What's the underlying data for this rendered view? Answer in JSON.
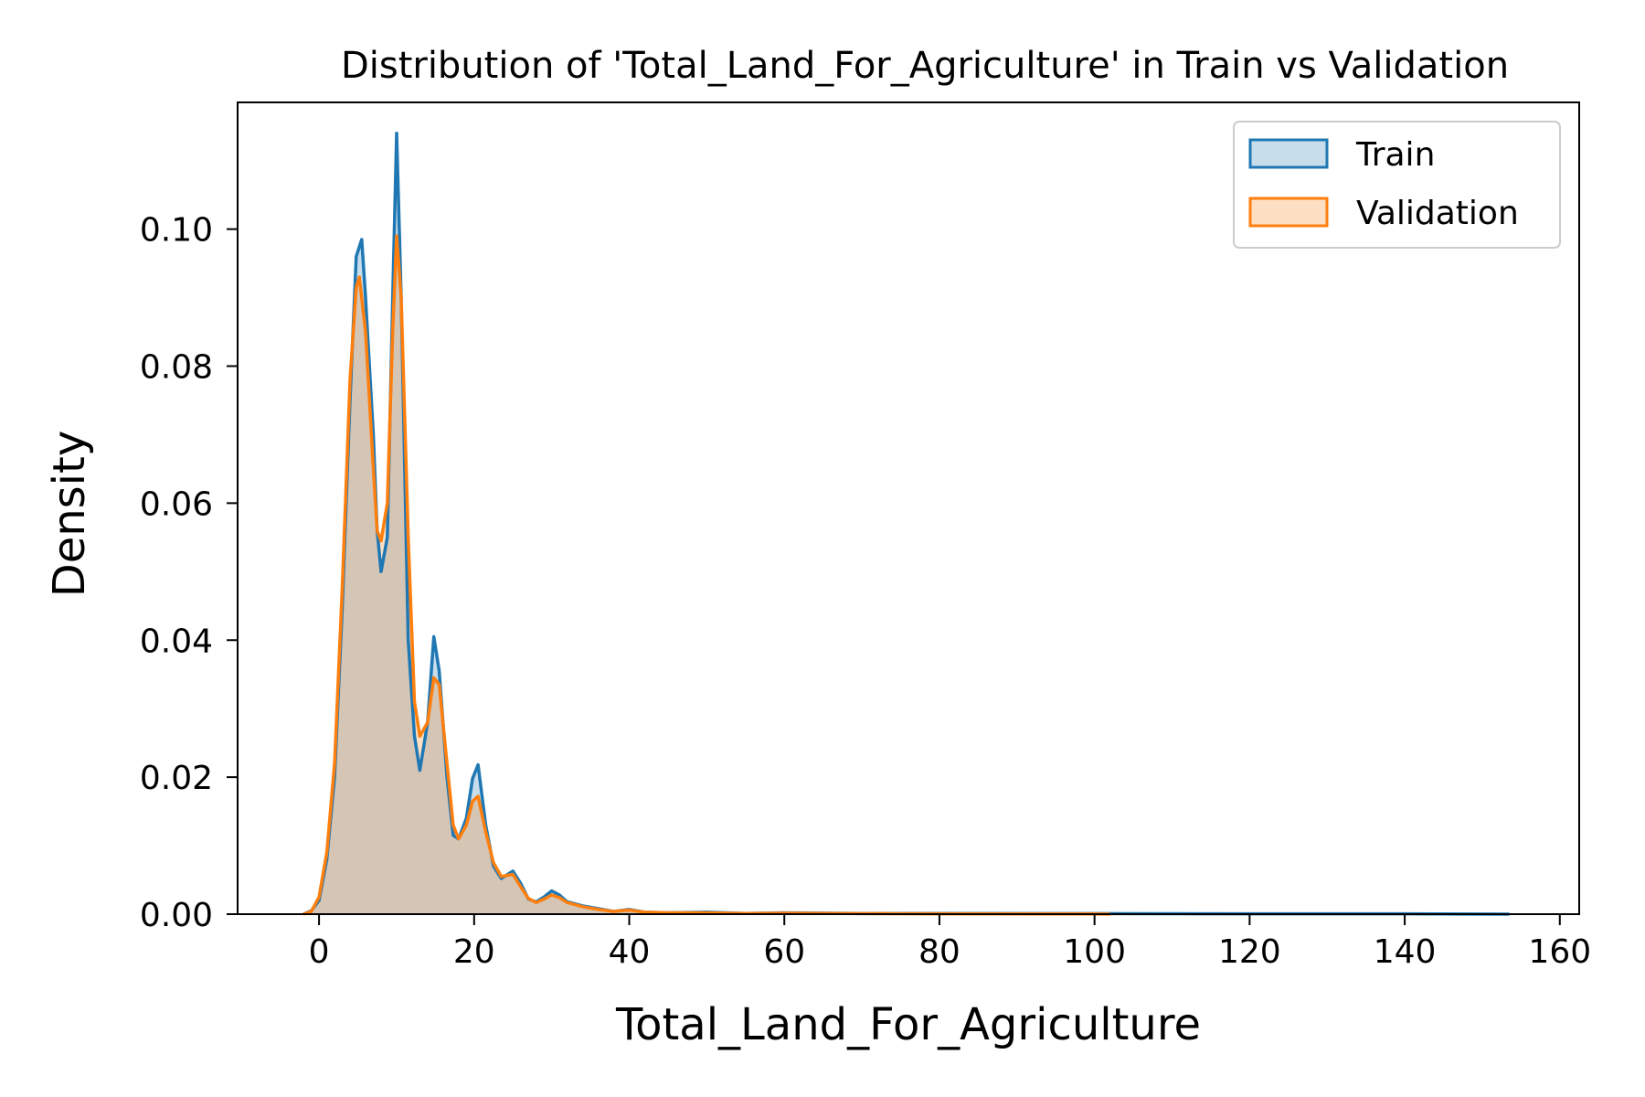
{
  "chart_data": {
    "type": "area",
    "title": "Distribution of 'Total_Land_For_Agriculture' in Train vs Validation",
    "xlabel": "Total_Land_For_Agriculture",
    "ylabel": "Density",
    "xlim": [
      -10.5,
      162.5
    ],
    "ylim": [
      0,
      0.1185
    ],
    "xticks": [
      0,
      20,
      40,
      60,
      80,
      100,
      120,
      140,
      160
    ],
    "yticks": [
      0.0,
      0.02,
      0.04,
      0.06,
      0.08,
      0.1
    ],
    "xtick_labels": [
      "0",
      "20",
      "40",
      "60",
      "80",
      "100",
      "120",
      "140",
      "160"
    ],
    "ytick_labels": [
      "0.00",
      "0.02",
      "0.04",
      "0.06",
      "0.08",
      "0.10"
    ],
    "legend_position": "top-right",
    "series": [
      {
        "name": "Train",
        "color": "#1f77b4",
        "points": [
          [
            -2,
            0
          ],
          [
            -1,
            0.0005
          ],
          [
            0,
            0.002
          ],
          [
            1,
            0.008
          ],
          [
            2,
            0.02
          ],
          [
            3,
            0.045
          ],
          [
            4,
            0.075
          ],
          [
            4.8,
            0.096
          ],
          [
            5.5,
            0.0985
          ],
          [
            6,
            0.09
          ],
          [
            7,
            0.07
          ],
          [
            7.5,
            0.056
          ],
          [
            8,
            0.05
          ],
          [
            8.8,
            0.055
          ],
          [
            9.5,
            0.09
          ],
          [
            10,
            0.114
          ],
          [
            10.6,
            0.09
          ],
          [
            11.5,
            0.04
          ],
          [
            12.3,
            0.026
          ],
          [
            13,
            0.021
          ],
          [
            14,
            0.028
          ],
          [
            14.8,
            0.0405
          ],
          [
            15.5,
            0.0355
          ],
          [
            16.5,
            0.02
          ],
          [
            17.3,
            0.0115
          ],
          [
            18,
            0.011
          ],
          [
            19,
            0.014
          ],
          [
            19.8,
            0.0198
          ],
          [
            20.5,
            0.0218
          ],
          [
            21.5,
            0.013
          ],
          [
            22.5,
            0.007
          ],
          [
            23.5,
            0.0052
          ],
          [
            25,
            0.0063
          ],
          [
            26,
            0.0045
          ],
          [
            27,
            0.0022
          ],
          [
            28,
            0.0018
          ],
          [
            29,
            0.0025
          ],
          [
            30,
            0.0034
          ],
          [
            31,
            0.0028
          ],
          [
            32,
            0.0018
          ],
          [
            34,
            0.0012
          ],
          [
            36,
            0.0008
          ],
          [
            38,
            0.0004
          ],
          [
            40,
            0.0007
          ],
          [
            42,
            0.0003
          ],
          [
            45,
            0.0002
          ],
          [
            50,
            0.0003
          ],
          [
            55,
            0.0001
          ],
          [
            60,
            0.0002
          ],
          [
            70,
            0.0001
          ],
          [
            80,
            0.0001
          ],
          [
            100,
            8e-05
          ],
          [
            120,
            6e-05
          ],
          [
            140,
            5e-05
          ],
          [
            153.5,
            0
          ]
        ]
      },
      {
        "name": "Validation",
        "color": "#ff7f0e",
        "points": [
          [
            -2,
            0
          ],
          [
            -1,
            0.0004
          ],
          [
            0,
            0.0025
          ],
          [
            1,
            0.009
          ],
          [
            2,
            0.022
          ],
          [
            3,
            0.048
          ],
          [
            4,
            0.078
          ],
          [
            4.8,
            0.0915
          ],
          [
            5.2,
            0.093
          ],
          [
            6,
            0.085
          ],
          [
            7,
            0.065
          ],
          [
            7.5,
            0.056
          ],
          [
            8,
            0.0545
          ],
          [
            8.8,
            0.06
          ],
          [
            9.5,
            0.085
          ],
          [
            10,
            0.099
          ],
          [
            10.6,
            0.09
          ],
          [
            11.5,
            0.055
          ],
          [
            12.3,
            0.031
          ],
          [
            13,
            0.026
          ],
          [
            14,
            0.028
          ],
          [
            14.8,
            0.0345
          ],
          [
            15.5,
            0.0335
          ],
          [
            16.5,
            0.022
          ],
          [
            17.3,
            0.013
          ],
          [
            18,
            0.011
          ],
          [
            19,
            0.013
          ],
          [
            19.8,
            0.0165
          ],
          [
            20.5,
            0.0172
          ],
          [
            21.5,
            0.012
          ],
          [
            22.5,
            0.0075
          ],
          [
            23.5,
            0.0055
          ],
          [
            25,
            0.0058
          ],
          [
            26,
            0.004
          ],
          [
            27,
            0.0023
          ],
          [
            28,
            0.0017
          ],
          [
            29,
            0.0022
          ],
          [
            30,
            0.0028
          ],
          [
            31,
            0.0024
          ],
          [
            32,
            0.0017
          ],
          [
            34,
            0.0011
          ],
          [
            36,
            0.0007
          ],
          [
            38,
            0.0004
          ],
          [
            40,
            0.0006
          ],
          [
            42,
            0.0003
          ],
          [
            45,
            0.0002
          ],
          [
            50,
            0.0002
          ],
          [
            55,
            0.0001
          ],
          [
            60,
            0.00015
          ],
          [
            70,
            8e-05
          ],
          [
            80,
            5e-05
          ],
          [
            100,
            3e-05
          ],
          [
            102,
            0
          ]
        ]
      }
    ]
  }
}
